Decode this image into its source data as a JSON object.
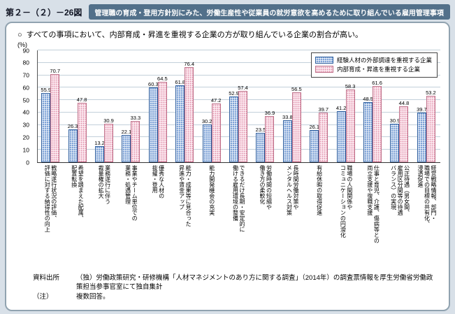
{
  "header": {
    "fig_no": "第２－（２）－26図",
    "title": "管理職の育成・登用方針別にみた、労働生産性や従業員の就労意欲を高めるために取り組んでいる雇用管理事項"
  },
  "bullet": {
    "marker": "○",
    "text": "すべての事項において、内部育成・昇進を重視する企業の方が取り組んでいる企業の割合が高い。"
  },
  "chart_data": {
    "type": "bar",
    "unit_label": "(%)",
    "ylim": [
      0,
      90
    ],
    "ytick_interval": 10,
    "grid": true,
    "legend_position": "top-right",
    "categories": [
      "戦略遂行状況の評価、\n評価に対する納得性の向上",
      "希望を踏まえた配属、\n配置転換",
      "業務遂行に伴う\n裁量権の拡大",
      "事業やチーム単位での\n業務・処遇管理",
      "優秀な人材の\n抜擢・登用",
      "能力・成果等に見合った\n昇進や賃金アップ",
      "能力開発機会の充実",
      "できるだけ長期・安定的に\n働ける雇用環境の整備",
      "労働時間の短縮や\n働き方の柔軟化",
      "長時間労働対策や\nメンタルヘルス対策",
      "有給休暇の取得促進",
      "職場の人間関係や\nコミュニケーションの円滑化",
      "仕事と育児、介護、傷病等との\n両立支援や復職支援",
      "公正待遇（男女間、\n雇用区分間等の待遇\nバランス）の実現",
      "経営戦略情報、部門・\n職場での目標の共有化、\n浸透促進"
    ],
    "series": [
      {
        "name": "経験人材の外部調達を重視する企業",
        "pattern": "blue-crosshatch",
        "color": "#7fa3d7",
        "values": [
          55.9,
          26.3,
          13.2,
          22.1,
          60.3,
          61.8,
          30.2,
          52.9,
          23.5,
          33.8,
          26.1,
          41.2,
          48.5,
          30.9,
          39.7
        ]
      },
      {
        "name": "内部育成・昇進を重視する企業",
        "pattern": "pink-dots",
        "color": "#fbe7ee",
        "values": [
          70.7,
          47.8,
          30.9,
          33.3,
          64.5,
          76.4,
          47.2,
          57.4,
          36.9,
          56.5,
          39.7,
          58.3,
          61.6,
          44.8,
          53.2
        ]
      }
    ]
  },
  "footer": {
    "source_label": "資料出所",
    "source_text": "（独）労働政策研究・研修機構「人材マネジメントのあり方に関する調査」（2014年）の調査票情報を厚生労働省労働政策担当参事官室にて独自集計",
    "note_label": "（注）",
    "note_text": "複数回答。"
  }
}
